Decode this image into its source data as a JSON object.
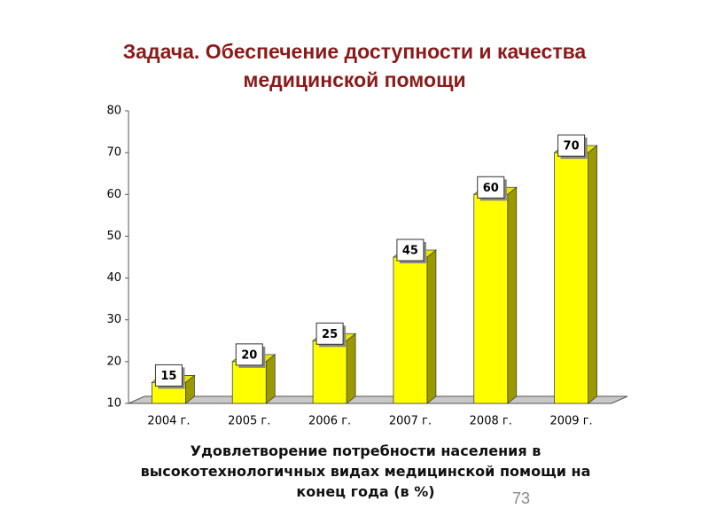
{
  "chart_data": {
    "type": "bar",
    "title": "Задача. Обеспечение доступности и качества медицинской помощи",
    "x_label": "Удовлетворение потребности населения в высокотехнологичных видах медицинской помощи на конец года (в %)",
    "categories": [
      "2004 г.",
      "2005 г.",
      "2006 г.",
      "2007 г.",
      "2008 г.",
      "2009 г."
    ],
    "values": [
      15,
      20,
      25,
      45,
      60,
      70
    ],
    "color": "#ffff00",
    "ylim": [
      10,
      80
    ],
    "yticks": [
      10,
      20,
      30,
      40,
      50,
      60,
      70,
      80
    ],
    "grid": false
  },
  "page_number": "73"
}
